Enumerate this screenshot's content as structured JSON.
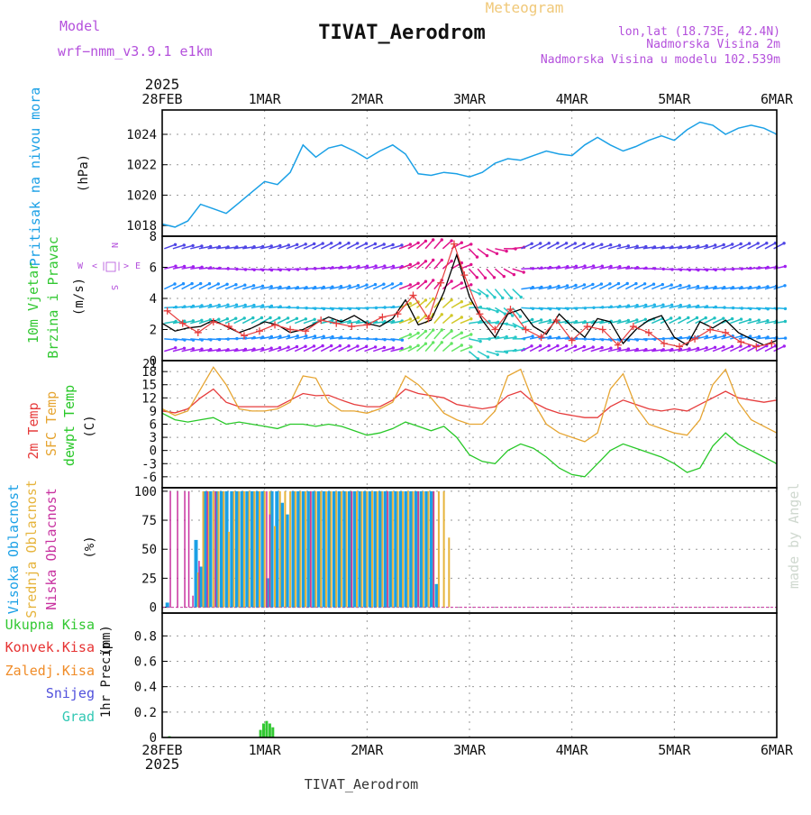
{
  "header": {
    "model_label": "Model",
    "model_value": "wrf−nmm_v3.9.1  e1km",
    "title": "TIVAT_Aerodrom",
    "subtitle": "Meteogram",
    "lonlat": "lon,lat (18.73E, 42.4N)",
    "elevation": "Nadmorska Visina 2m",
    "model_elevation": "Nadmorska Visina u modelu 102.539m",
    "credit": "made by Angel",
    "footer_title": "TIVAT_Aerodrom"
  },
  "colors": {
    "pressure": "#1aa0e6",
    "temp2m": "#e63c3c",
    "sfctemp": "#e6a532",
    "dewpoint": "#28c828",
    "high_cloud": "#1aa0e6",
    "mid_cloud": "#e6b43c",
    "low_cloud": "#c832a0",
    "total_precip": "#32c832",
    "conv_precip": "#e63232",
    "frz_precip": "#f08c28",
    "snow": "#5050dc",
    "graupel": "#32c8b4",
    "wind_label": "#32c832",
    "compass": "#b450dc"
  },
  "chart_data": {
    "type": "line",
    "x_axis": {
      "top_year": "2025",
      "bottom_year": "2025",
      "range_days": [
        0,
        6
      ],
      "labels": [
        {
          "day": 0,
          "label": "28FEB"
        },
        {
          "day": 1,
          "label": "1MAR"
        },
        {
          "day": 2,
          "label": "2MAR"
        },
        {
          "day": 3,
          "label": "3MAR"
        },
        {
          "day": 4,
          "label": "4MAR"
        },
        {
          "day": 5,
          "label": "5MAR"
        },
        {
          "day": 6,
          "label": "6MAR"
        }
      ]
    },
    "pressure": {
      "ylabel_main": "Pritisak na nivou mora",
      "ylabel_unit": "(hPa)",
      "ylim": [
        1017.3,
        1025.6
      ],
      "ticks": [
        1018,
        1020,
        1022,
        1024
      ],
      "series": {
        "name": "Pritisak na nivou mora",
        "x": [
          0,
          0.125,
          0.25,
          0.375,
          0.5,
          0.625,
          0.75,
          0.875,
          1.0,
          1.125,
          1.25,
          1.375,
          1.5,
          1.625,
          1.75,
          1.875,
          2.0,
          2.125,
          2.25,
          2.375,
          2.5,
          2.625,
          2.75,
          2.875,
          3.0,
          3.125,
          3.25,
          3.375,
          3.5,
          3.625,
          3.75,
          3.875,
          4.0,
          4.125,
          4.25,
          4.375,
          4.5,
          4.625,
          4.75,
          4.875,
          5.0,
          5.125,
          5.25,
          5.375,
          5.5,
          5.625,
          5.75,
          5.875,
          6.0
        ],
        "values": [
          1018.1,
          1017.9,
          1018.3,
          1019.4,
          1019.1,
          1018.8,
          1019.5,
          1020.2,
          1020.9,
          1020.7,
          1021.5,
          1023.3,
          1022.5,
          1023.1,
          1023.3,
          1022.9,
          1022.4,
          1022.9,
          1023.3,
          1022.7,
          1021.4,
          1021.3,
          1021.5,
          1021.4,
          1021.2,
          1021.5,
          1022.1,
          1022.4,
          1022.3,
          1022.6,
          1022.9,
          1022.7,
          1022.6,
          1023.3,
          1023.8,
          1023.3,
          1022.9,
          1023.2,
          1023.6,
          1023.9,
          1023.6,
          1024.3,
          1024.8,
          1024.6,
          1024.0,
          1024.4,
          1024.6,
          1024.4,
          1024.0
        ]
      }
    },
    "wind": {
      "ylabel_main": "10m Vjetar",
      "ylabel_sub": "Brzina i Pravac",
      "ylabel_unit": "(m/s)",
      "compass": {
        "n": "N",
        "s": "S",
        "e": "E",
        "w": "W",
        "left_arrow": "<",
        "right_arrow": ">",
        "bar": "|"
      },
      "ylim": [
        0,
        8
      ],
      "ticks": [
        0,
        2,
        4,
        6,
        8
      ],
      "note": "rows of colored direction arrows fill the panel",
      "speed_series": {
        "name": "10m wind speed",
        "x": [
          0,
          0.125,
          0.25,
          0.375,
          0.5,
          0.625,
          0.75,
          0.875,
          1.0,
          1.125,
          1.25,
          1.375,
          1.5,
          1.625,
          1.75,
          1.875,
          2.0,
          2.125,
          2.25,
          2.375,
          2.5,
          2.625,
          2.75,
          2.875,
          3.0,
          3.125,
          3.25,
          3.375,
          3.5,
          3.625,
          3.75,
          3.875,
          4.0,
          4.125,
          4.25,
          4.375,
          4.5,
          4.625,
          4.75,
          4.875,
          5.0,
          5.125,
          5.25,
          5.375,
          5.5,
          5.625,
          5.75,
          5.875,
          6.0
        ],
        "values": [
          2.4,
          1.9,
          2.1,
          2.2,
          2.6,
          2.2,
          1.8,
          2.1,
          2.5,
          2.3,
          1.8,
          2.0,
          2.4,
          2.8,
          2.5,
          2.9,
          2.4,
          2.2,
          2.7,
          3.9,
          2.3,
          2.6,
          4.4,
          6.8,
          4.1,
          2.6,
          1.5,
          3.0,
          3.3,
          2.2,
          1.7,
          3.0,
          2.2,
          1.5,
          2.7,
          2.5,
          1.1,
          2.0,
          2.6,
          2.9,
          1.5,
          1.0,
          2.5,
          2.1,
          2.6,
          1.8,
          1.4,
          1.0,
          1.3
        ]
      },
      "gust_series": {
        "name": "10m wind gust",
        "x": [
          0.05,
          0.2,
          0.35,
          0.5,
          0.65,
          0.8,
          0.95,
          1.1,
          1.25,
          1.4,
          1.55,
          1.7,
          1.85,
          2.0,
          2.15,
          2.3,
          2.45,
          2.6,
          2.72,
          2.85,
          2.95,
          3.1,
          3.25,
          3.4,
          3.55,
          3.7,
          3.85,
          4.0,
          4.15,
          4.3,
          4.45,
          4.6,
          4.75,
          4.9,
          5.05,
          5.2,
          5.35,
          5.5,
          5.65,
          5.8,
          5.95
        ],
        "values": [
          3.2,
          2.4,
          1.8,
          2.5,
          2.2,
          1.6,
          1.9,
          2.3,
          2.0,
          1.9,
          2.6,
          2.4,
          2.2,
          2.3,
          2.8,
          3.0,
          4.2,
          2.7,
          5.0,
          7.5,
          5.5,
          3.0,
          2.0,
          3.3,
          2.0,
          1.5,
          2.6,
          1.3,
          2.2,
          2.0,
          1.0,
          2.2,
          1.8,
          1.1,
          0.9,
          1.4,
          2.0,
          1.8,
          1.2,
          0.9,
          1.1
        ]
      }
    },
    "temperature": {
      "ylabel_1": "2m Temp",
      "ylabel_2": "SFC Temp",
      "ylabel_3": "dewpt Temp",
      "ylabel_unit": "(C)",
      "ylim": [
        -8.5,
        20.5
      ],
      "ticks": [
        -6,
        -3,
        0,
        3,
        6,
        9,
        12,
        15,
        18
      ],
      "top_label": "21",
      "x": [
        0,
        0.125,
        0.25,
        0.375,
        0.5,
        0.625,
        0.75,
        0.875,
        1.0,
        1.125,
        1.25,
        1.375,
        1.5,
        1.625,
        1.75,
        1.875,
        2.0,
        2.125,
        2.25,
        2.375,
        2.5,
        2.625,
        2.75,
        2.875,
        3.0,
        3.125,
        3.25,
        3.375,
        3.5,
        3.625,
        3.75,
        3.875,
        4.0,
        4.125,
        4.25,
        4.375,
        4.5,
        4.625,
        4.75,
        4.875,
        5.0,
        5.125,
        5.25,
        5.375,
        5.5,
        5.625,
        5.75,
        5.875,
        6.0
      ],
      "series": [
        {
          "name": "2m Temp",
          "values": [
            9.0,
            8.6,
            9.5,
            12.0,
            14.0,
            11.0,
            10.0,
            10.0,
            10.0,
            10.0,
            11.5,
            13.0,
            12.5,
            12.6,
            11.5,
            10.5,
            10.0,
            10.0,
            11.5,
            14.0,
            13.0,
            12.5,
            12.0,
            10.5,
            10.0,
            9.5,
            10.0,
            12.5,
            13.5,
            11.0,
            9.5,
            8.5,
            8.0,
            7.5,
            7.5,
            10.0,
            11.5,
            10.5,
            9.5,
            9.0,
            9.5,
            9.0,
            10.5,
            12.0,
            13.5,
            12.0,
            11.5,
            11.0,
            11.5
          ]
        },
        {
          "name": "SFC Temp",
          "values": [
            9.5,
            8.0,
            9.0,
            14.0,
            19.0,
            15.0,
            9.5,
            9.0,
            9.0,
            9.5,
            11.0,
            17.0,
            16.5,
            11.0,
            9.0,
            9.0,
            8.5,
            9.5,
            11.0,
            17.0,
            15.0,
            12.0,
            8.5,
            7.0,
            6.0,
            6.0,
            9.0,
            17.0,
            18.5,
            11.0,
            6.0,
            4.0,
            3.0,
            2.0,
            4.0,
            14.0,
            17.5,
            10.0,
            6.0,
            5.0,
            4.0,
            3.5,
            7.0,
            15.0,
            18.5,
            11.0,
            7.0,
            5.5,
            4.0
          ]
        },
        {
          "name": "dewpt Temp",
          "values": [
            8.5,
            7.0,
            6.5,
            7.0,
            7.5,
            6.0,
            6.5,
            6.0,
            5.5,
            5.0,
            6.0,
            6.0,
            5.5,
            6.0,
            5.5,
            4.5,
            3.5,
            4.0,
            5.0,
            6.5,
            5.5,
            4.5,
            5.5,
            3.0,
            -1.0,
            -2.5,
            -3.0,
            0.0,
            1.5,
            0.5,
            -1.5,
            -4.0,
            -5.5,
            -6.0,
            -3.0,
            0.0,
            1.5,
            0.5,
            -0.5,
            -1.5,
            -3.0,
            -5.0,
            -4.0,
            1.0,
            4.0,
            1.5,
            0.0,
            -1.5,
            -3.0
          ]
        }
      ]
    },
    "clouds": {
      "type": "bar",
      "ylabel_1": "Visoka Oblacnost",
      "ylabel_2": "Srednja Oblacnost",
      "ylabel_3": "Niska Oblacnost",
      "ylabel_unit": "(%)",
      "ylim": [
        -5,
        103
      ],
      "ticks": [
        0,
        25,
        50,
        75,
        100
      ],
      "series": [
        {
          "name": "Visoka Oblacnost",
          "x": [
            0.05,
            0.33,
            0.38,
            0.42,
            0.47,
            0.53,
            0.58,
            0.63,
            0.68,
            0.73,
            0.78,
            0.83,
            0.88,
            0.93,
            0.98,
            1.03,
            1.07,
            1.12,
            1.17,
            1.22,
            1.28,
            1.33,
            1.38,
            1.43,
            1.48,
            1.53,
            1.58,
            1.63,
            1.68,
            1.73,
            1.78,
            1.83,
            1.88,
            1.93,
            1.98,
            2.03,
            2.08,
            2.13,
            2.18,
            2.23,
            2.28,
            2.33,
            2.38,
            2.43,
            2.48,
            2.53,
            2.58,
            2.63,
            2.68
          ],
          "values": [
            4,
            58,
            35,
            100,
            100,
            100,
            100,
            100,
            100,
            100,
            100,
            100,
            100,
            100,
            100,
            25,
            100,
            100,
            90,
            80,
            100,
            100,
            100,
            100,
            100,
            100,
            100,
            100,
            100,
            100,
            100,
            100,
            100,
            100,
            100,
            100,
            100,
            100,
            100,
            100,
            100,
            100,
            100,
            100,
            100,
            100,
            100,
            100,
            20
          ]
        },
        {
          "name": "Srednja Oblacnost",
          "x": [
            0.35,
            0.4,
            0.45,
            0.5,
            0.55,
            0.6,
            0.65,
            0.7,
            0.75,
            0.8,
            0.85,
            0.9,
            0.95,
            1.0,
            1.05,
            1.1,
            1.15,
            1.2,
            1.25,
            1.3,
            1.35,
            1.4,
            1.45,
            1.5,
            1.55,
            1.6,
            1.65,
            1.7,
            1.75,
            1.8,
            1.85,
            1.9,
            1.95,
            2.0,
            2.05,
            2.1,
            2.15,
            2.2,
            2.25,
            2.3,
            2.35,
            2.4,
            2.45,
            2.5,
            2.55,
            2.6,
            2.65,
            2.7,
            2.75,
            2.8
          ],
          "values": [
            30,
            100,
            100,
            100,
            100,
            100,
            65,
            100,
            100,
            100,
            100,
            100,
            100,
            100,
            100,
            70,
            100,
            100,
            100,
            100,
            100,
            100,
            100,
            100,
            100,
            100,
            100,
            100,
            100,
            100,
            100,
            100,
            100,
            100,
            100,
            100,
            100,
            100,
            100,
            100,
            100,
            100,
            100,
            100,
            100,
            100,
            100,
            100,
            100,
            60
          ]
        },
        {
          "name": "Niska Oblacnost",
          "x": [
            0.08,
            0.15,
            0.22,
            0.26,
            0.3,
            0.36,
            0.44,
            0.52,
            1.02,
            1.05,
            1.45,
            1.85,
            2.2,
            2.5,
            2.65
          ],
          "values": [
            100,
            100,
            100,
            100,
            10,
            40,
            100,
            100,
            100,
            80,
            100,
            100,
            100,
            100,
            100
          ]
        }
      ]
    },
    "precip": {
      "type": "bar",
      "legend": [
        "Ukupna Kisa",
        "Konvek.Kisa",
        "Zaledj.Kisa",
        "Snijeg",
        "Grad"
      ],
      "ylabel_main": "1hr Precip",
      "ylabel_unit": "(mm)",
      "ylim": [
        0,
        0.98
      ],
      "ticks": [
        0,
        0.2,
        0.4,
        0.6,
        0.8
      ],
      "tick_labels": [
        "0",
        "0.2",
        "0.4",
        "0.6",
        "0.8"
      ],
      "series": [
        {
          "name": "Ukupna Kisa",
          "x": [
            0.07,
            0.96,
            0.99,
            1.02,
            1.05,
            1.08
          ],
          "values": [
            0.01,
            0.06,
            0.11,
            0.13,
            0.11,
            0.08
          ]
        }
      ]
    }
  }
}
